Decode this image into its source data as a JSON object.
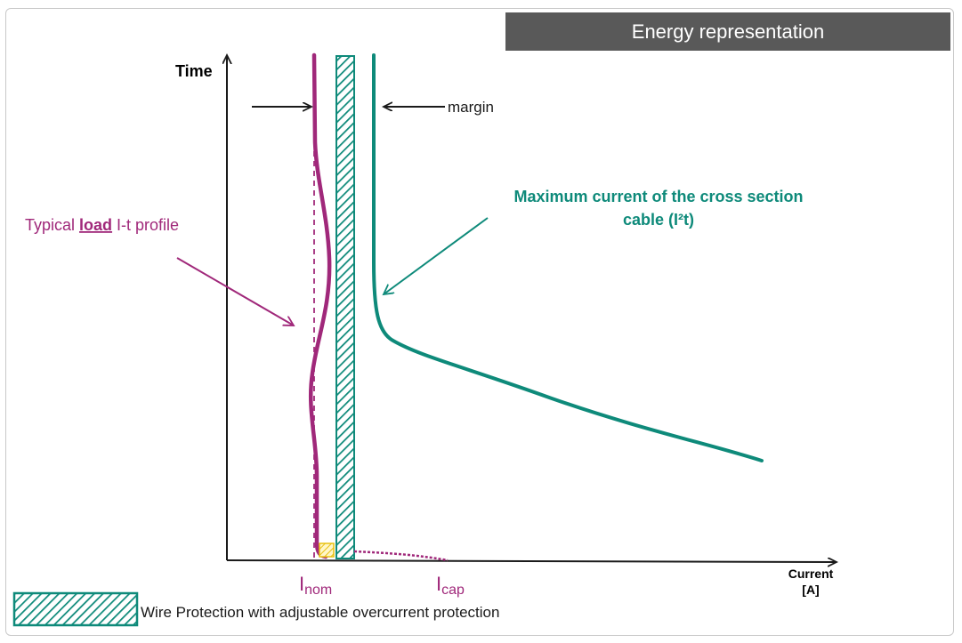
{
  "header": {
    "title": "Energy representation"
  },
  "axes": {
    "y_label": "Time",
    "x_label_line1": "Current",
    "x_label_line2": "[A]"
  },
  "annotations": {
    "margin": "margin",
    "load_profile_prefix": "Typical ",
    "load_profile_emphasis": "load",
    "load_profile_suffix": " I-t profile",
    "cable_curve_line1": "Maximum current of the cross section",
    "cable_curve_line2": "cable (I²t)"
  },
  "ticks": {
    "nom_main": "I",
    "nom_sub": "nom",
    "cap_main": "I",
    "cap_sub": "cap"
  },
  "legend": {
    "label": "Wire Protection with adjustable overcurrent protection"
  },
  "colors": {
    "load": "#a0287a",
    "cable": "#0e8a7a",
    "axis": "#1a1a1a",
    "header_bg": "#595959",
    "marker": "#f0d020"
  }
}
